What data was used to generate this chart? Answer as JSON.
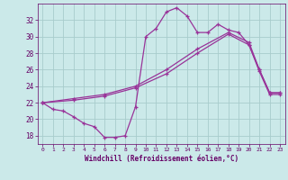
{
  "background_color": "#cbe9e9",
  "grid_color": "#a8cccc",
  "line_color": "#993399",
  "xlabel": "Windchill (Refroidissement éolien,°C)",
  "xlabel_color": "#660066",
  "tick_color": "#660066",
  "xlim": [
    -0.5,
    23.5
  ],
  "ylim": [
    17,
    34
  ],
  "yticks": [
    18,
    20,
    22,
    24,
    26,
    28,
    30,
    32
  ],
  "xticks": [
    0,
    1,
    2,
    3,
    4,
    5,
    6,
    7,
    8,
    9,
    10,
    11,
    12,
    13,
    14,
    15,
    16,
    17,
    18,
    19,
    20,
    21,
    22,
    23
  ],
  "line1_x": [
    0,
    1,
    2,
    3,
    4,
    5,
    6,
    7,
    8,
    9,
    10,
    11,
    12,
    13,
    14,
    15,
    16,
    17,
    18,
    19,
    20,
    21,
    22,
    23
  ],
  "line1_y": [
    22,
    21.2,
    21.0,
    20.3,
    19.5,
    19.1,
    17.8,
    17.8,
    18.0,
    21.5,
    30.0,
    31.0,
    33.0,
    33.5,
    32.5,
    30.5,
    30.5,
    31.5,
    30.8,
    30.5,
    29.0,
    26.0,
    23.2,
    23.2
  ],
  "line1_markers": [
    0,
    1,
    2,
    3,
    4,
    5,
    6,
    7,
    8,
    9,
    10,
    11,
    12,
    13,
    14,
    15,
    16,
    17,
    18,
    19,
    20,
    21,
    22,
    23
  ],
  "line2_x": [
    0,
    3,
    6,
    9,
    12,
    15,
    18,
    20,
    21,
    22,
    23
  ],
  "line2_y": [
    22,
    22.5,
    23.0,
    24.0,
    26.0,
    28.5,
    30.5,
    29.3,
    26.0,
    23.2,
    23.2
  ],
  "line3_x": [
    0,
    3,
    6,
    9,
    12,
    15,
    18,
    20,
    21,
    22,
    23
  ],
  "line3_y": [
    22,
    22.3,
    22.8,
    23.8,
    25.5,
    28.0,
    30.3,
    29.0,
    25.8,
    23.0,
    23.0
  ]
}
